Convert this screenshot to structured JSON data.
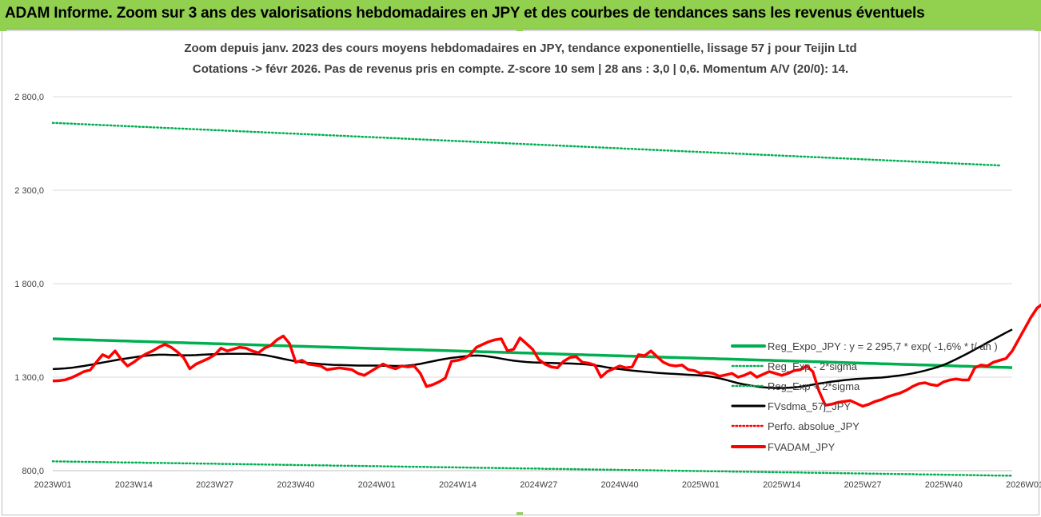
{
  "header": {
    "title": "ADAM Informe. Zoom sur 3 ans des valorisations hebdomadaires en JPY et des courbes de tendances sans les revenus éventuels"
  },
  "colors": {
    "banner": "#92d050",
    "reg_expo": "#00b050",
    "sigma": "#00b050",
    "sma": "#000000",
    "perfo": "#ff0000",
    "adam": "#ff0000"
  },
  "chart_data": {
    "type": "line",
    "title": "Zoom depuis janv. 2023 des cours moyens hebdomadaires en JPY, tendance exponentielle, lissage 57 j pour Teijin Ltd",
    "subtitle": "Cotations -> févr 2026. Pas de revenus pris en compte. Z-score 10 sem | 28 ans : 3,0 | 0,6. Momentum A/V (20/0): 14.",
    "xlabel": "",
    "ylabel": "",
    "ylim": [
      800,
      2800
    ],
    "y_ticks": [
      "800,0",
      "1 300,0",
      "1 800,0",
      "2 300,0",
      "2 800,0"
    ],
    "x_ticks": [
      "2023W01",
      "2023W14",
      "2023W27",
      "2023W40",
      "2024W01",
      "2024W14",
      "2024W27",
      "2024W40",
      "2025W01",
      "2025W14",
      "2025W27",
      "2025W40",
      "2026W01"
    ],
    "grid": "horizontal",
    "legend_position": "right",
    "x_start_label": "2023W01",
    "series": [
      {
        "name": "Reg_Expo_JPY : y = 2 295,7 * exp( -1,6% * t/ an )",
        "style": "solid-thick",
        "color": "#00b050",
        "values": [
          1505,
          1504,
          1503,
          1502,
          1501,
          1500,
          1499,
          1498,
          1497,
          1496,
          1495,
          1494,
          1493,
          1492,
          1491,
          1490,
          1489,
          1488,
          1487,
          1486,
          1485,
          1484,
          1483,
          1482,
          1481,
          1480,
          1479,
          1478,
          1477,
          1476,
          1475,
          1474,
          1473,
          1472,
          1471,
          1470,
          1469,
          1468,
          1467,
          1466,
          1465,
          1464,
          1463,
          1462,
          1461,
          1460,
          1459,
          1458,
          1457,
          1456,
          1455,
          1454,
          1453,
          1452,
          1451,
          1450,
          1449,
          1448,
          1447,
          1446,
          1445,
          1444,
          1443,
          1442,
          1441,
          1440,
          1439,
          1438,
          1437,
          1436,
          1435,
          1434,
          1433,
          1432,
          1431,
          1430,
          1429,
          1428,
          1427,
          1426,
          1425,
          1424,
          1423,
          1422,
          1421,
          1420,
          1419,
          1418,
          1417,
          1416,
          1415,
          1414,
          1413,
          1412,
          1411,
          1410,
          1409,
          1408,
          1407,
          1406,
          1405,
          1404,
          1403,
          1402,
          1401,
          1400,
          1399,
          1398,
          1397,
          1396,
          1395,
          1394,
          1393,
          1392,
          1391,
          1390,
          1389,
          1388,
          1387,
          1386,
          1385,
          1384,
          1383,
          1382,
          1381,
          1380,
          1379,
          1378,
          1377,
          1376,
          1375,
          1374,
          1373,
          1372,
          1371,
          1370,
          1369,
          1368,
          1367,
          1366,
          1365,
          1364,
          1363,
          1362,
          1361,
          1360,
          1359,
          1358,
          1357,
          1356,
          1355,
          1354,
          1353,
          1352,
          1351
        ]
      },
      {
        "name": "Reg_Exp - 2*sigma",
        "style": "dotted",
        "color": "#00b050",
        "values": [
          850,
          849,
          849,
          848,
          848,
          847,
          847,
          846,
          846,
          845,
          845,
          844,
          844,
          843,
          843,
          842,
          842,
          841,
          841,
          840,
          840,
          839,
          839,
          838,
          838,
          837,
          837,
          836,
          836,
          835,
          835,
          834,
          834,
          833,
          833,
          832,
          832,
          831,
          831,
          830,
          830,
          829,
          829,
          828,
          828,
          827,
          827,
          826,
          826,
          825,
          825,
          824,
          824,
          823,
          823,
          822,
          822,
          821,
          821,
          820,
          820,
          819,
          819,
          818,
          818,
          817,
          817,
          816,
          816,
          815,
          815,
          814,
          814,
          813,
          813,
          812,
          812,
          811,
          811,
          810,
          810,
          809,
          809,
          808,
          808,
          807,
          807,
          806,
          806,
          805,
          805,
          804,
          804,
          803,
          803,
          802,
          802,
          801,
          801,
          800,
          800,
          799,
          799,
          798,
          798,
          797,
          797,
          796,
          796,
          795,
          795,
          794,
          794,
          793,
          793,
          792,
          792,
          791,
          791,
          790,
          790,
          789,
          789,
          788,
          788,
          787,
          787,
          786,
          786,
          785,
          785,
          784,
          784,
          783,
          783,
          782,
          782,
          781,
          781,
          780,
          780,
          779,
          779,
          778,
          778,
          777,
          777,
          776,
          776,
          775,
          775,
          774,
          774,
          773,
          773
        ]
      },
      {
        "name": "Reg_Exp + 2*sigma",
        "style": "dotted",
        "color": "#00b050",
        "values": [
          2660,
          2659,
          2657,
          2656,
          2654,
          2653,
          2651,
          2650,
          2648,
          2647,
          2645,
          2644,
          2642,
          2641,
          2639,
          2638,
          2636,
          2635,
          2633,
          2632,
          2630,
          2629,
          2627,
          2626,
          2624,
          2623,
          2621,
          2620,
          2618,
          2617,
          2615,
          2614,
          2612,
          2611,
          2609,
          2608,
          2606,
          2605,
          2603,
          2602,
          2600,
          2599,
          2597,
          2596,
          2594,
          2593,
          2591,
          2590,
          2588,
          2587,
          2585,
          2584,
          2582,
          2581,
          2579,
          2578,
          2576,
          2575,
          2573,
          2572,
          2570,
          2569,
          2567,
          2566,
          2564,
          2563,
          2561,
          2560,
          2558,
          2557,
          2555,
          2554,
          2552,
          2551,
          2549,
          2548,
          2546,
          2545,
          2543,
          2542,
          2540,
          2539,
          2537,
          2536,
          2534,
          2533,
          2531,
          2530,
          2528,
          2527,
          2525,
          2524,
          2522,
          2521,
          2519,
          2518,
          2516,
          2515,
          2513,
          2512,
          2510,
          2509,
          2507,
          2506,
          2504,
          2503,
          2501,
          2500,
          2498,
          2497,
          2495,
          2494,
          2492,
          2491,
          2489,
          2488,
          2486,
          2485,
          2483,
          2482,
          2480,
          2479,
          2477,
          2476,
          2474,
          2473,
          2471,
          2470,
          2468,
          2467,
          2465,
          2464,
          2462,
          2461,
          2459,
          2458,
          2456,
          2455,
          2453,
          2452,
          2450,
          2449,
          2447,
          2446,
          2444,
          2443,
          2441,
          2440,
          2438,
          2437,
          2435,
          2434,
          2432
        ]
      },
      {
        "name": "FVsdma_57j_JPY",
        "style": "solid",
        "color": "#000000",
        "values": [
          1343,
          1345,
          1347,
          1350,
          1355,
          1360,
          1366,
          1372,
          1378,
          1384,
          1390,
          1396,
          1401,
          1406,
          1411,
          1415,
          1418,
          1420,
          1420,
          1419,
          1418,
          1417,
          1417,
          1418,
          1420,
          1422,
          1423,
          1424,
          1425,
          1425,
          1425,
          1425,
          1424,
          1422,
          1418,
          1412,
          1405,
          1398,
          1391,
          1385,
          1380,
          1376,
          1373,
          1370,
          1368,
          1366,
          1365,
          1364,
          1363,
          1362,
          1362,
          1362,
          1362,
          1361,
          1361,
          1360,
          1360,
          1362,
          1366,
          1371,
          1378,
          1385,
          1392,
          1398,
          1403,
          1407,
          1411,
          1414,
          1416,
          1414,
          1410,
          1405,
          1399,
          1393,
          1388,
          1384,
          1381,
          1379,
          1378,
          1377,
          1376,
          1375,
          1374,
          1373,
          1372,
          1370,
          1367,
          1363,
          1358,
          1352,
          1347,
          1343,
          1339,
          1335,
          1332,
          1329,
          1326,
          1323,
          1321,
          1319,
          1317,
          1315,
          1313,
          1311,
          1309,
          1306,
          1301,
          1294,
          1286,
          1277,
          1268,
          1261,
          1255,
          1250,
          1246,
          1243,
          1242,
          1242,
          1243,
          1245,
          1249,
          1254,
          1260,
          1266,
          1271,
          1276,
          1280,
          1284,
          1287,
          1290,
          1292,
          1294,
          1296,
          1298,
          1301,
          1305,
          1309,
          1314,
          1320,
          1327,
          1335,
          1344,
          1354,
          1366,
          1380,
          1396,
          1413,
          1430,
          1448,
          1466,
          1484,
          1502,
          1520,
          1538,
          1555
        ]
      },
      {
        "name": "Perfo. absolue_JPY",
        "style": "dotted",
        "color": "#ff0000",
        "values": []
      },
      {
        "name": "FVADAM_JPY",
        "style": "solid-thick",
        "color": "#ff0000",
        "values": [
          1280,
          1281,
          1286,
          1297,
          1313,
          1330,
          1338,
          1380,
          1420,
          1405,
          1440,
          1395,
          1360,
          1380,
          1405,
          1425,
          1440,
          1460,
          1475,
          1460,
          1435,
          1405,
          1345,
          1370,
          1385,
          1400,
          1420,
          1455,
          1440,
          1450,
          1460,
          1455,
          1440,
          1430,
          1455,
          1470,
          1500,
          1520,
          1480,
          1380,
          1390,
          1370,
          1365,
          1360,
          1340,
          1345,
          1350,
          1345,
          1340,
          1320,
          1310,
          1330,
          1350,
          1370,
          1355,
          1345,
          1360,
          1355,
          1360,
          1320,
          1250,
          1260,
          1275,
          1295,
          1385,
          1390,
          1400,
          1420,
          1460,
          1475,
          1490,
          1500,
          1505,
          1440,
          1450,
          1510,
          1480,
          1450,
          1395,
          1370,
          1355,
          1350,
          1385,
          1405,
          1410,
          1380,
          1375,
          1365,
          1300,
          1330,
          1345,
          1360,
          1350,
          1355,
          1420,
          1415,
          1440,
          1410,
          1380,
          1365,
          1360,
          1365,
          1340,
          1335,
          1320,
          1325,
          1320,
          1305,
          1312,
          1320,
          1300,
          1310,
          1325,
          1300,
          1315,
          1330,
          1320,
          1310,
          1320,
          1335,
          1340,
          1360,
          1330,
          1225,
          1150,
          1155,
          1165,
          1170,
          1175,
          1160,
          1145,
          1155,
          1170,
          1180,
          1195,
          1205,
          1215,
          1230,
          1250,
          1265,
          1270,
          1260,
          1255,
          1275,
          1285,
          1290,
          1285,
          1285,
          1350,
          1365,
          1360,
          1380,
          1390,
          1400,
          1440,
          1500,
          1560,
          1620,
          1670,
          1695
        ]
      }
    ]
  }
}
